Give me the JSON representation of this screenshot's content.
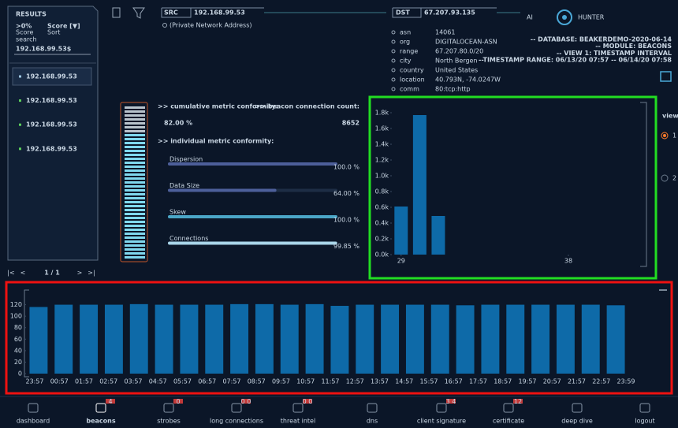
{
  "results": {
    "title": "RESULTS",
    "filter": ">0%",
    "filter_label": "Score",
    "sort": "Score [▼]",
    "sort_label": "Sort",
    "search_label": "search",
    "search": "192.168.99.53$",
    "items": [
      "192.168.99.53",
      "192.168.99.53",
      "192.168.99.53",
      "192.168.99.53"
    ],
    "pager": "1 / 1"
  },
  "src": {
    "label": "SRC",
    "ip": "192.168.99.53",
    "note": "(Private Network Address)"
  },
  "dst": {
    "label": "DST",
    "ip": "67.207.93.135",
    "fields": [
      {
        "key": "asn",
        "value": "14061"
      },
      {
        "key": "org",
        "value": "DIGITALOCEAN-ASN"
      },
      {
        "key": "range",
        "value": "67.207.80.0/20"
      },
      {
        "key": "city",
        "value": "North Bergen"
      },
      {
        "key": "country",
        "value": "United States"
      },
      {
        "key": "location",
        "value": "40.793N, -74.0247W"
      },
      {
        "key": "comm",
        "value": "80:tcp:http"
      }
    ]
  },
  "logo": {
    "left": "AI",
    "right": "HUNTER"
  },
  "info": [
    "-- DATABASE: BEAKERDEMO-2020-06-14",
    "-- MODULE: BEACONS",
    "-- VIEW 1: TIMESTAMP INTERVAL",
    "--TIMESTAMP RANGE: 06/13/20 07:57 -- 06/14/20 07:58"
  ],
  "metrics": {
    "cumulative_label": ">> cumulative metric conformity:",
    "cumulative": {
      "value": 82,
      "label": "82.00 %"
    },
    "count_label": ">> beacon connection count:",
    "count": 8652,
    "individual_label": ">> individual metric conformity:",
    "individual": [
      {
        "name": "Dispersion",
        "value": 100,
        "label": "100.0 %"
      },
      {
        "name": "Data Size",
        "value": 64,
        "label": "64.00 %"
      },
      {
        "name": "Skew",
        "value": 100,
        "label": "100.0 %"
      },
      {
        "name": "Connections",
        "value": 99.85,
        "label": "99.85 %"
      }
    ]
  },
  "views": {
    "title": "views",
    "options": [
      "1",
      "2"
    ]
  },
  "nav": [
    {
      "label": "dashboard"
    },
    {
      "label": "beacons",
      "badge": "4"
    },
    {
      "label": "strobes",
      "badge": "0"
    },
    {
      "label": "long connections",
      "badge": "0 0"
    },
    {
      "label": "threat intel",
      "badge": "0 0"
    },
    {
      "label": "dns"
    },
    {
      "label": "client signature",
      "badge": "3 4"
    },
    {
      "label": "certificate",
      "badge": "12"
    },
    {
      "label": "deep dive"
    },
    {
      "label": "logout"
    }
  ],
  "chart_data": [
    {
      "type": "bar",
      "x": [
        29,
        30,
        31
      ],
      "values": [
        610,
        1770,
        490
      ],
      "color": "#0e6aa8",
      "xlim": [
        28.5,
        42.2
      ],
      "xticks": [
        29,
        38
      ],
      "ylim": [
        0,
        1800
      ],
      "yticks": [
        {
          "value": 0,
          "label": "0.0k"
        },
        {
          "value": 200,
          "label": "0.2k"
        },
        {
          "value": 400,
          "label": "0.4k"
        },
        {
          "value": 600,
          "label": "0.6k"
        },
        {
          "value": 800,
          "label": "0.8k"
        },
        {
          "value": 1000,
          "label": "1.0k"
        },
        {
          "value": 1200,
          "label": "1.2k"
        },
        {
          "value": 1400,
          "label": "1.4k"
        },
        {
          "value": 1600,
          "label": "1.6k"
        },
        {
          "value": 1800,
          "label": "1.8k"
        }
      ]
    },
    {
      "type": "histogram",
      "bins": [
        "23:57",
        "00:57",
        "01:57",
        "02:57",
        "03:57",
        "04:57",
        "05:57",
        "06:57",
        "07:57",
        "08:57",
        "09:57",
        "10:57",
        "11:57",
        "12:57",
        "13:57",
        "14:57",
        "15:57",
        "16:57",
        "17:57",
        "18:57",
        "19:57",
        "20:57",
        "21:57",
        "22:57",
        "23:59"
      ],
      "values": [
        116,
        120,
        120,
        120,
        121,
        120,
        120,
        120,
        121,
        121,
        120,
        121,
        118,
        120,
        120,
        120,
        120,
        119,
        120,
        120,
        120,
        120,
        120,
        119
      ],
      "color": "#0e6aa8",
      "ylim": [
        0,
        140
      ],
      "yticks": [
        0,
        20,
        40,
        60,
        80,
        100,
        120
      ]
    }
  ]
}
